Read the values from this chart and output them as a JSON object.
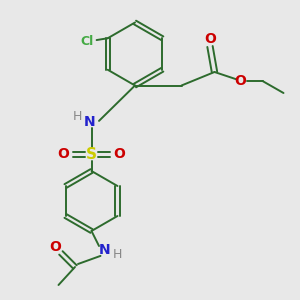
{
  "bg_color": "#e8e8e8",
  "bond_color": "#2d6b2d",
  "N_color": "#2222cc",
  "O_color": "#cc0000",
  "S_color": "#cccc00",
  "Cl_color": "#44aa44",
  "H_color": "#888888",
  "figsize": [
    3.0,
    3.0
  ],
  "dpi": 100,
  "xlim": [
    0,
    10
  ],
  "ylim": [
    0,
    10
  ]
}
